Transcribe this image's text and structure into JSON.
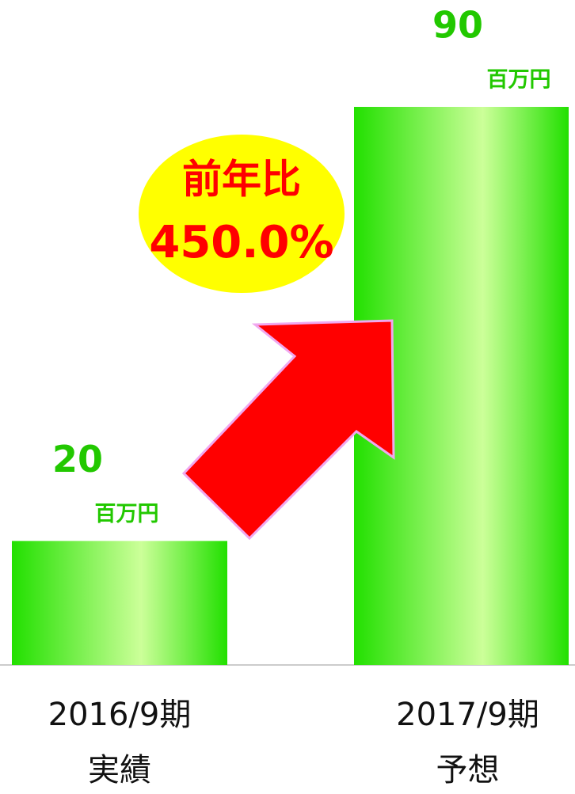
{
  "chart_data": {
    "type": "bar",
    "categories": [
      [
        "2016/9期",
        "実績"
      ],
      [
        "2017/9期",
        "予想"
      ]
    ],
    "values": [
      20,
      90
    ],
    "unit": "百万円",
    "annotation": [
      "前年比",
      "450.0%"
    ],
    "color": "#22e000"
  }
}
